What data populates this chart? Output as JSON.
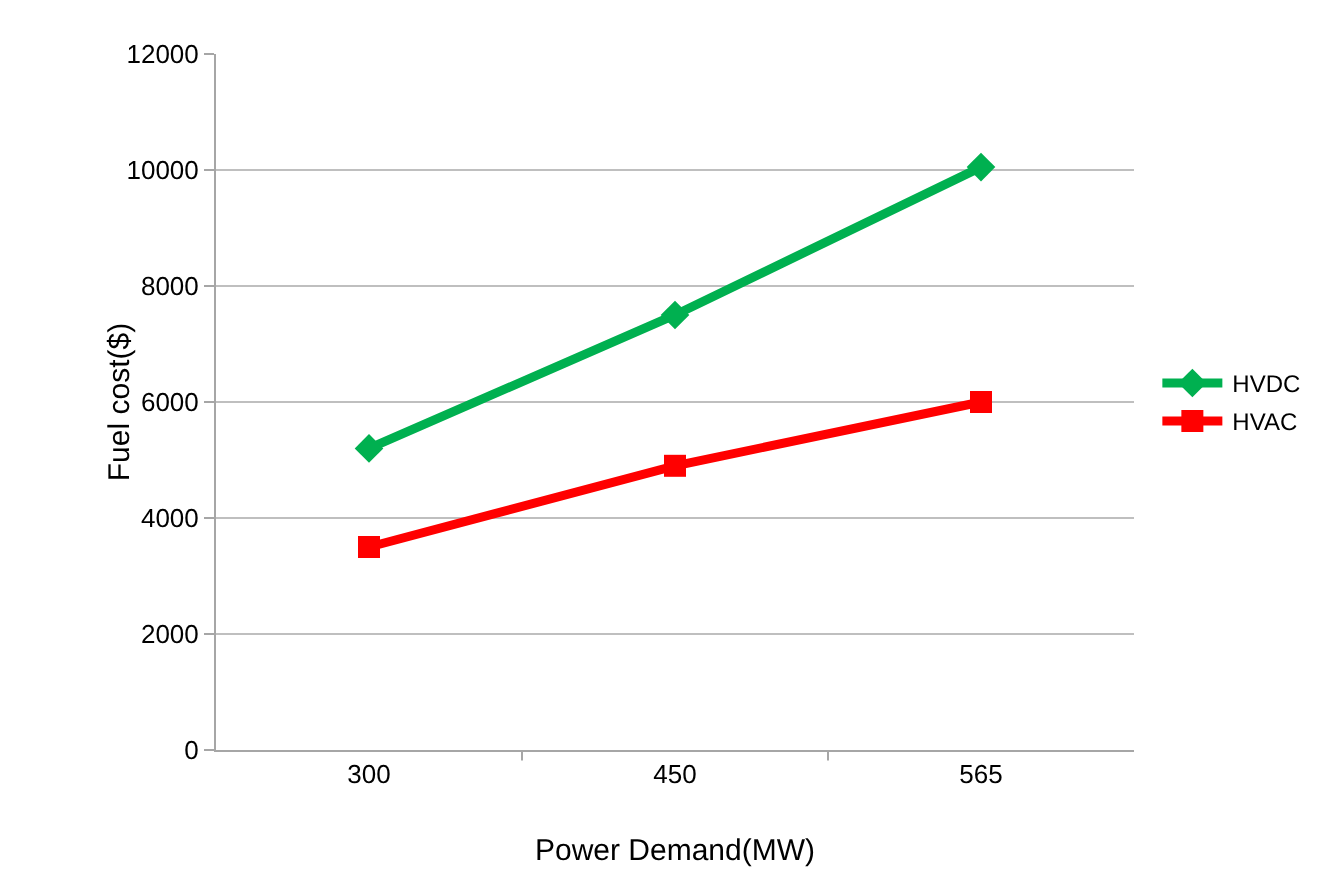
{
  "chart_data": {
    "type": "line",
    "xlabel": "Power Demand(MW)",
    "ylabel": "Fuel cost($)",
    "categories": [
      "300",
      "450",
      "565"
    ],
    "series": [
      {
        "name": "HVDC",
        "color": "#00b050",
        "marker": "diamond",
        "values": [
          5200,
          7500,
          10050
        ]
      },
      {
        "name": "HVAC",
        "color": "#ff0000",
        "marker": "square",
        "values": [
          3500,
          4900,
          6000
        ]
      }
    ],
    "ylim": [
      0,
      12000
    ],
    "yticks": [
      0,
      2000,
      4000,
      6000,
      8000,
      10000,
      12000
    ],
    "grid": "y",
    "legend": "right",
    "line_style": "solid"
  }
}
